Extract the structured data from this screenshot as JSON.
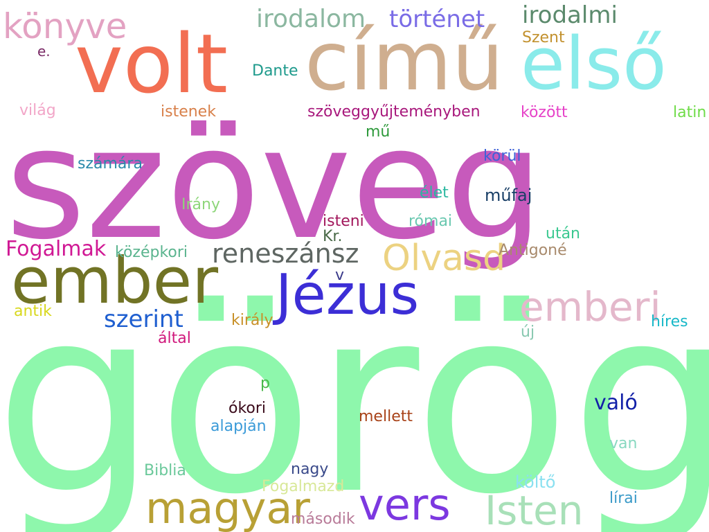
{
  "words": [
    {
      "text": "görög",
      "color": "#8ef7ac"
    },
    {
      "text": "szöveg",
      "color": "#c75abc"
    },
    {
      "text": "volt",
      "color": "#f26e52"
    },
    {
      "text": "című",
      "color": "#cfae8f"
    },
    {
      "text": "első",
      "color": "#8aebea"
    },
    {
      "text": "ember",
      "color": "#717325"
    },
    {
      "text": "Jézus",
      "color": "#3c2ed6"
    },
    {
      "text": "emberi",
      "color": "#e4b8cb"
    },
    {
      "text": "magyar",
      "color": "#b8a035"
    },
    {
      "text": "vers",
      "color": "#7c38e0"
    },
    {
      "text": "Isten",
      "color": "#a8e0b8"
    },
    {
      "text": "Olvasd",
      "color": "#ecd281"
    },
    {
      "text": "könyve",
      "color": "#e3a2c2"
    },
    {
      "text": "reneszánsz",
      "color": "#5e6662"
    },
    {
      "text": "irodalom",
      "color": "#8bb7a0"
    },
    {
      "text": "történet",
      "color": "#7a6ce6"
    },
    {
      "text": "irodalmi",
      "color": "#5b8a6c"
    },
    {
      "text": "szerint",
      "color": "#1f5fd0"
    },
    {
      "text": "Fogalmak",
      "color": "#d01894"
    },
    {
      "text": "való",
      "color": "#1220a8"
    },
    {
      "text": "szöveggyűjteményben",
      "color": "#a8187c"
    },
    {
      "text": "Szent",
      "color": "#c2912e"
    },
    {
      "text": "Dante",
      "color": "#1e9a8c"
    },
    {
      "text": "istenek",
      "color": "#d8804a"
    },
    {
      "text": "között",
      "color": "#e642c8"
    },
    {
      "text": "latin",
      "color": "#6fdc48"
    },
    {
      "text": "világ",
      "color": "#f2a6c8"
    },
    {
      "text": "e.",
      "color": "#7a2a66"
    },
    {
      "text": "mű",
      "color": "#2f9a3c"
    },
    {
      "text": "körül",
      "color": "#3e62d8"
    },
    {
      "text": "számára",
      "color": "#2a8aaa"
    },
    {
      "text": "élet",
      "color": "#2ab8a0"
    },
    {
      "text": "műfaj",
      "color": "#183e66"
    },
    {
      "text": "Irány",
      "color": "#8ed67a"
    },
    {
      "text": "isteni",
      "color": "#a2185c"
    },
    {
      "text": "római",
      "color": "#6ac8b0"
    },
    {
      "text": "után",
      "color": "#3ac890"
    },
    {
      "text": "Kr.",
      "color": "#4a6a48"
    },
    {
      "text": "középkori",
      "color": "#5ab48e"
    },
    {
      "text": "Antigoné",
      "color": "#a88a6c"
    },
    {
      "text": "v",
      "color": "#3a3a8a"
    },
    {
      "text": "antik",
      "color": "#d8d81e"
    },
    {
      "text": "király",
      "color": "#c89028"
    },
    {
      "text": "híres",
      "color": "#18b8c8"
    },
    {
      "text": "által",
      "color": "#d0187c"
    },
    {
      "text": "új",
      "color": "#88c8b0"
    },
    {
      "text": "p",
      "color": "#4ab84a"
    },
    {
      "text": "ókori",
      "color": "#3a0a1a"
    },
    {
      "text": "mellett",
      "color": "#a84218"
    },
    {
      "text": "alapján",
      "color": "#3a9ad8"
    },
    {
      "text": "van",
      "color": "#88d8c0"
    },
    {
      "text": "Biblia",
      "color": "#6ac89a"
    },
    {
      "text": "nagy",
      "color": "#3a4a8a"
    },
    {
      "text": "költő",
      "color": "#8ae0f0"
    },
    {
      "text": "Fogalmazd",
      "color": "#d8e898"
    },
    {
      "text": "lírai",
      "color": "#3a9ac8"
    },
    {
      "text": "második",
      "color": "#b87a98"
    }
  ]
}
